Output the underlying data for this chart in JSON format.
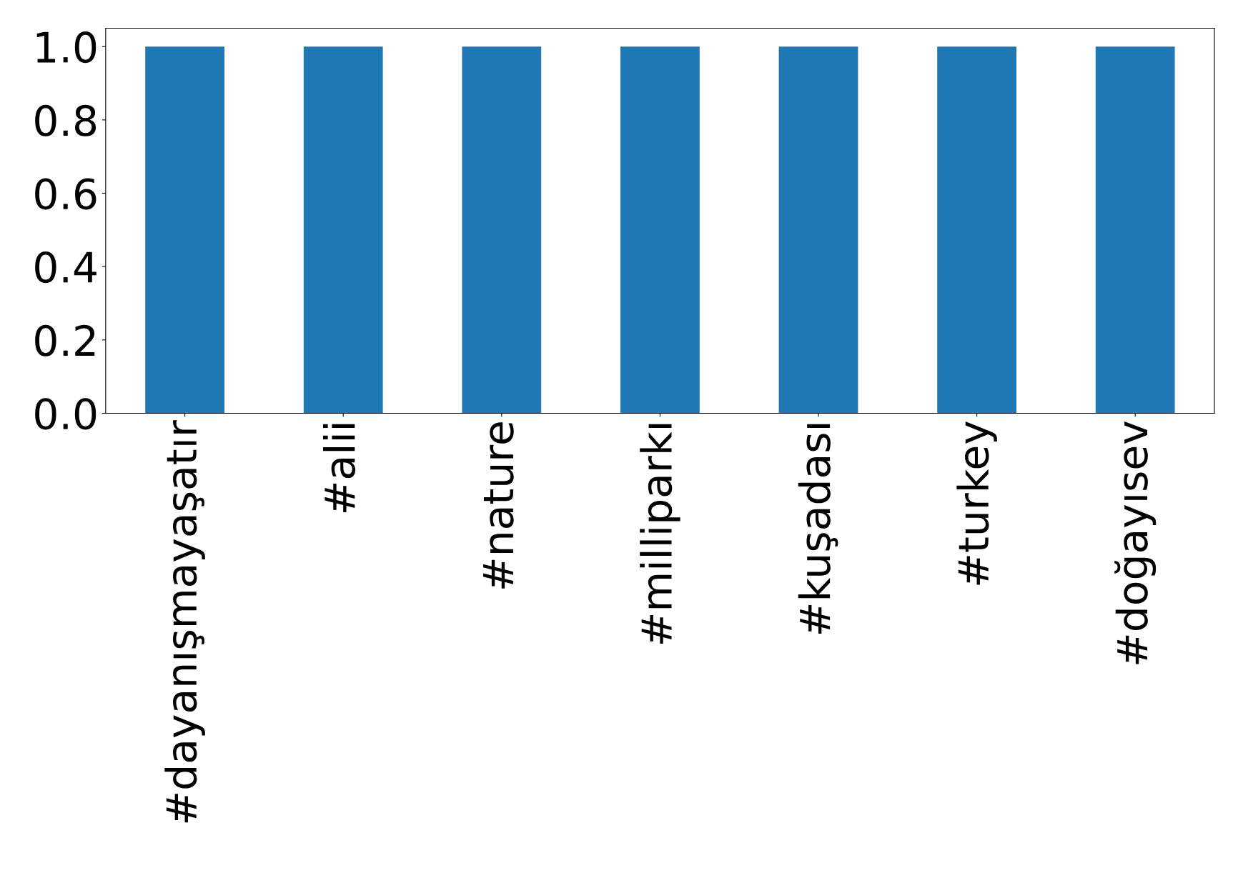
{
  "chart_data": {
    "type": "bar",
    "categories": [
      "#dayanışmayaşatır",
      "#alii",
      "#nature",
      "#milliparkı",
      "#kuşadası",
      "#turkey",
      "#doğayısev"
    ],
    "values": [
      1,
      1,
      1,
      1,
      1,
      1,
      1
    ],
    "color": "#1f77b4",
    "ylim": [
      0,
      1.05
    ],
    "yticks": [
      {
        "value": 0,
        "label": "0.0"
      },
      {
        "value": 0.2,
        "label": "0.2"
      },
      {
        "value": 0.4,
        "label": "0.4"
      },
      {
        "value": 0.6,
        "label": "0.6"
      },
      {
        "value": 0.8,
        "label": "0.8"
      },
      {
        "value": 1.0,
        "label": "1.0"
      }
    ],
    "grid": false
  }
}
